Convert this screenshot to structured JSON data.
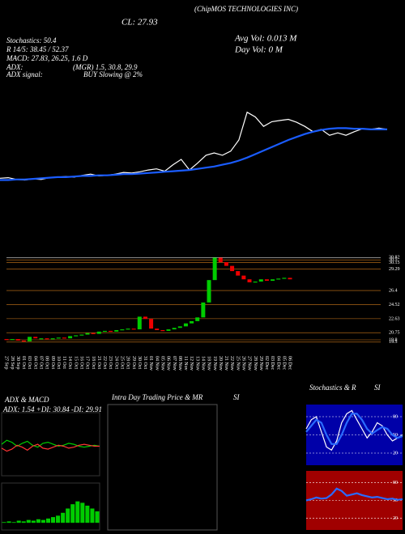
{
  "header": {
    "company": "(ChipMOS TECHNOLOGIES INC)",
    "close": "CL: 27.93",
    "avg_vol": "Avg Vol: 0.013 M",
    "day_vol": "Day Vol: 0 M",
    "stochastics": "Stochastics: 50.4",
    "r": "R 14/5: 38.45 / 52.37",
    "macd": "MACD: 27.83, 26.25, 1.6 D",
    "adx": "ADX:",
    "adx_values": "(MGR) 1.5, 30.8, 29.9",
    "adx_signal": "ADX signal:",
    "adx_signal_value": "BUY Slowing @ 2%"
  },
  "intraday_panel": {
    "title": "Intra Day Trading Price & MR",
    "title_suffix": "SI"
  },
  "chart_data": [
    {
      "type": "line",
      "ylim": [
        18,
        32
      ],
      "series": [
        {
          "color": "#ffffff",
          "values": [
            19.6,
            19.7,
            19.4,
            19.3,
            19.5,
            19.4,
            19.7,
            19.8,
            19.9,
            19.8,
            20.1,
            20.3,
            20.0,
            20.1,
            20.3,
            20.6,
            20.5,
            20.7,
            21.0,
            21.2,
            20.8,
            21.9,
            22.8,
            21.0,
            22.2,
            23.5,
            23.9,
            23.5,
            24.2,
            26.1,
            30.8,
            30.0,
            28.4,
            29.2,
            29.4,
            29.6,
            29.1,
            28.4,
            27.5,
            27.9,
            26.9,
            27.3,
            26.9,
            27.5,
            28.0,
            27.9,
            28.1,
            27.9
          ]
        },
        {
          "color": "#1a5cff",
          "values": [
            19.3,
            19.3,
            19.4,
            19.4,
            19.5,
            19.6,
            19.7,
            19.8,
            19.8,
            19.9,
            20.0,
            20.0,
            20.1,
            20.1,
            20.2,
            20.3,
            20.3,
            20.4,
            20.5,
            20.6,
            20.7,
            20.8,
            20.9,
            21.0,
            21.2,
            21.4,
            21.6,
            21.9,
            22.2,
            22.6,
            23.1,
            23.7,
            24.3,
            24.9,
            25.5,
            26.1,
            26.6,
            27.1,
            27.5,
            27.8,
            28.0,
            28.1,
            28.1,
            28.0,
            28.0,
            27.9,
            27.9,
            27.9
          ]
        }
      ]
    },
    {
      "type": "candlestick",
      "ylim": [
        18.5,
        31.5
      ],
      "up_color": "#00cc00",
      "down_color": "#ee0000",
      "yticks": [
        30.82,
        30.5,
        30.15,
        29.29,
        26.4,
        24.52,
        22.63,
        20.75,
        19.8,
        19.5
      ],
      "categories": [
        "27 Sep",
        "28 Sep",
        "30 Sep",
        "01 Oct",
        "03 Oct",
        "04 Oct",
        "07 Oct",
        "08 Oct",
        "09 Oct",
        "10 Oct",
        "11 Oct",
        "14 Oct",
        "15 Oct",
        "16 Oct",
        "17 Oct",
        "18 Oct",
        "21 Oct",
        "22 Oct",
        "23 Oct",
        "24 Oct",
        "25 Oct",
        "28 Oct",
        "29 Oct",
        "30 Oct",
        "31 Oct",
        "01 Nov",
        "04 Nov",
        "05 Nov",
        "06 Nov",
        "07 Nov",
        "08 Nov",
        "11 Nov",
        "12 Nov",
        "13 Nov",
        "14 Nov",
        "18 Nov",
        "19 Nov",
        "20 Nov",
        "21 Nov",
        "22 Nov",
        "25 Nov",
        "26 Nov",
        "27 Nov",
        "28 Nov",
        "29 Nov",
        "02 Dec",
        "03 Dec",
        "04 Dec",
        "05 Dec",
        "06 Dec"
      ],
      "open": [
        19.9,
        19.8,
        19.9,
        19.7,
        19.6,
        20.2,
        19.9,
        20.0,
        19.9,
        20.0,
        20.1,
        20.0,
        20.3,
        20.4,
        20.5,
        20.7,
        20.6,
        20.9,
        21.0,
        20.9,
        21.1,
        21.2,
        21.3,
        21.2,
        22.9,
        22.6,
        21.3,
        21.1,
        21.0,
        21.2,
        21.4,
        21.6,
        22.0,
        22.3,
        22.8,
        24.8,
        27.8,
        30.8,
        30.2,
        29.7,
        29.0,
        28.4,
        27.9,
        27.5,
        27.6,
        27.9,
        27.7,
        27.9,
        28.0,
        28.1
      ],
      "close": [
        19.8,
        19.9,
        19.7,
        19.6,
        20.2,
        20.0,
        20.0,
        19.9,
        20.0,
        20.1,
        20.0,
        20.3,
        20.4,
        20.5,
        20.7,
        20.6,
        20.9,
        21.0,
        20.9,
        21.1,
        21.2,
        21.3,
        21.2,
        22.9,
        22.6,
        21.3,
        21.1,
        21.0,
        21.2,
        21.4,
        21.6,
        22.0,
        22.3,
        22.8,
        24.8,
        27.8,
        30.8,
        30.2,
        29.7,
        29.0,
        28.4,
        27.9,
        27.5,
        27.6,
        27.9,
        27.7,
        27.9,
        28.0,
        28.1,
        27.9
      ]
    },
    {
      "type": "line",
      "title": "ADX & MACD",
      "subtitle": "ADX: 1.54 +DI: 30.84 -DI: 29.91",
      "ylim": [
        0,
        60
      ],
      "series": [
        {
          "color": "#00cc00",
          "values": [
            32,
            36,
            34,
            30,
            33,
            35,
            31,
            29,
            33,
            34,
            32,
            30,
            31,
            33,
            32,
            30,
            29,
            30,
            31,
            30
          ]
        },
        {
          "color": "#ff3333",
          "values": [
            28,
            25,
            27,
            31,
            29,
            26,
            30,
            32,
            28,
            27,
            29,
            31,
            30,
            28,
            29,
            31,
            32,
            31,
            30,
            30
          ]
        }
      ]
    },
    {
      "type": "bar",
      "ylim": [
        -1,
        5
      ],
      "color": "#00cc00",
      "values": [
        0.1,
        0.2,
        0.1,
        0.3,
        0.2,
        0.4,
        0.3,
        0.5,
        0.4,
        0.6,
        0.8,
        1.0,
        1.4,
        2.0,
        2.6,
        3.0,
        2.8,
        2.4,
        2.0,
        1.6
      ]
    },
    {
      "type": "line",
      "title": "Stochastics & R",
      "subtitle": "SI",
      "ylim": [
        0,
        100
      ],
      "yticks": [
        20,
        50,
        80
      ],
      "background": "#0000a8",
      "series": [
        {
          "color": "#ffffff",
          "values": [
            60,
            75,
            80,
            55,
            30,
            25,
            40,
            70,
            85,
            90,
            75,
            60,
            45,
            55,
            70,
            65,
            50,
            40,
            45,
            50
          ]
        },
        {
          "color": "#2a6bff",
          "values": [
            55,
            65,
            75,
            70,
            50,
            35,
            35,
            50,
            70,
            85,
            85,
            75,
            60,
            52,
            58,
            63,
            60,
            50,
            45,
            48
          ]
        }
      ]
    },
    {
      "type": "line",
      "ylim": [
        0,
        100
      ],
      "yticks": [
        20,
        50,
        80
      ],
      "background": "#a00000",
      "series": [
        {
          "color": "#2a6bff",
          "values": [
            50,
            52,
            55,
            53,
            54,
            60,
            70,
            66,
            58,
            60,
            62,
            59,
            57,
            55,
            56,
            54,
            52,
            53,
            51,
            52
          ]
        }
      ]
    }
  ]
}
